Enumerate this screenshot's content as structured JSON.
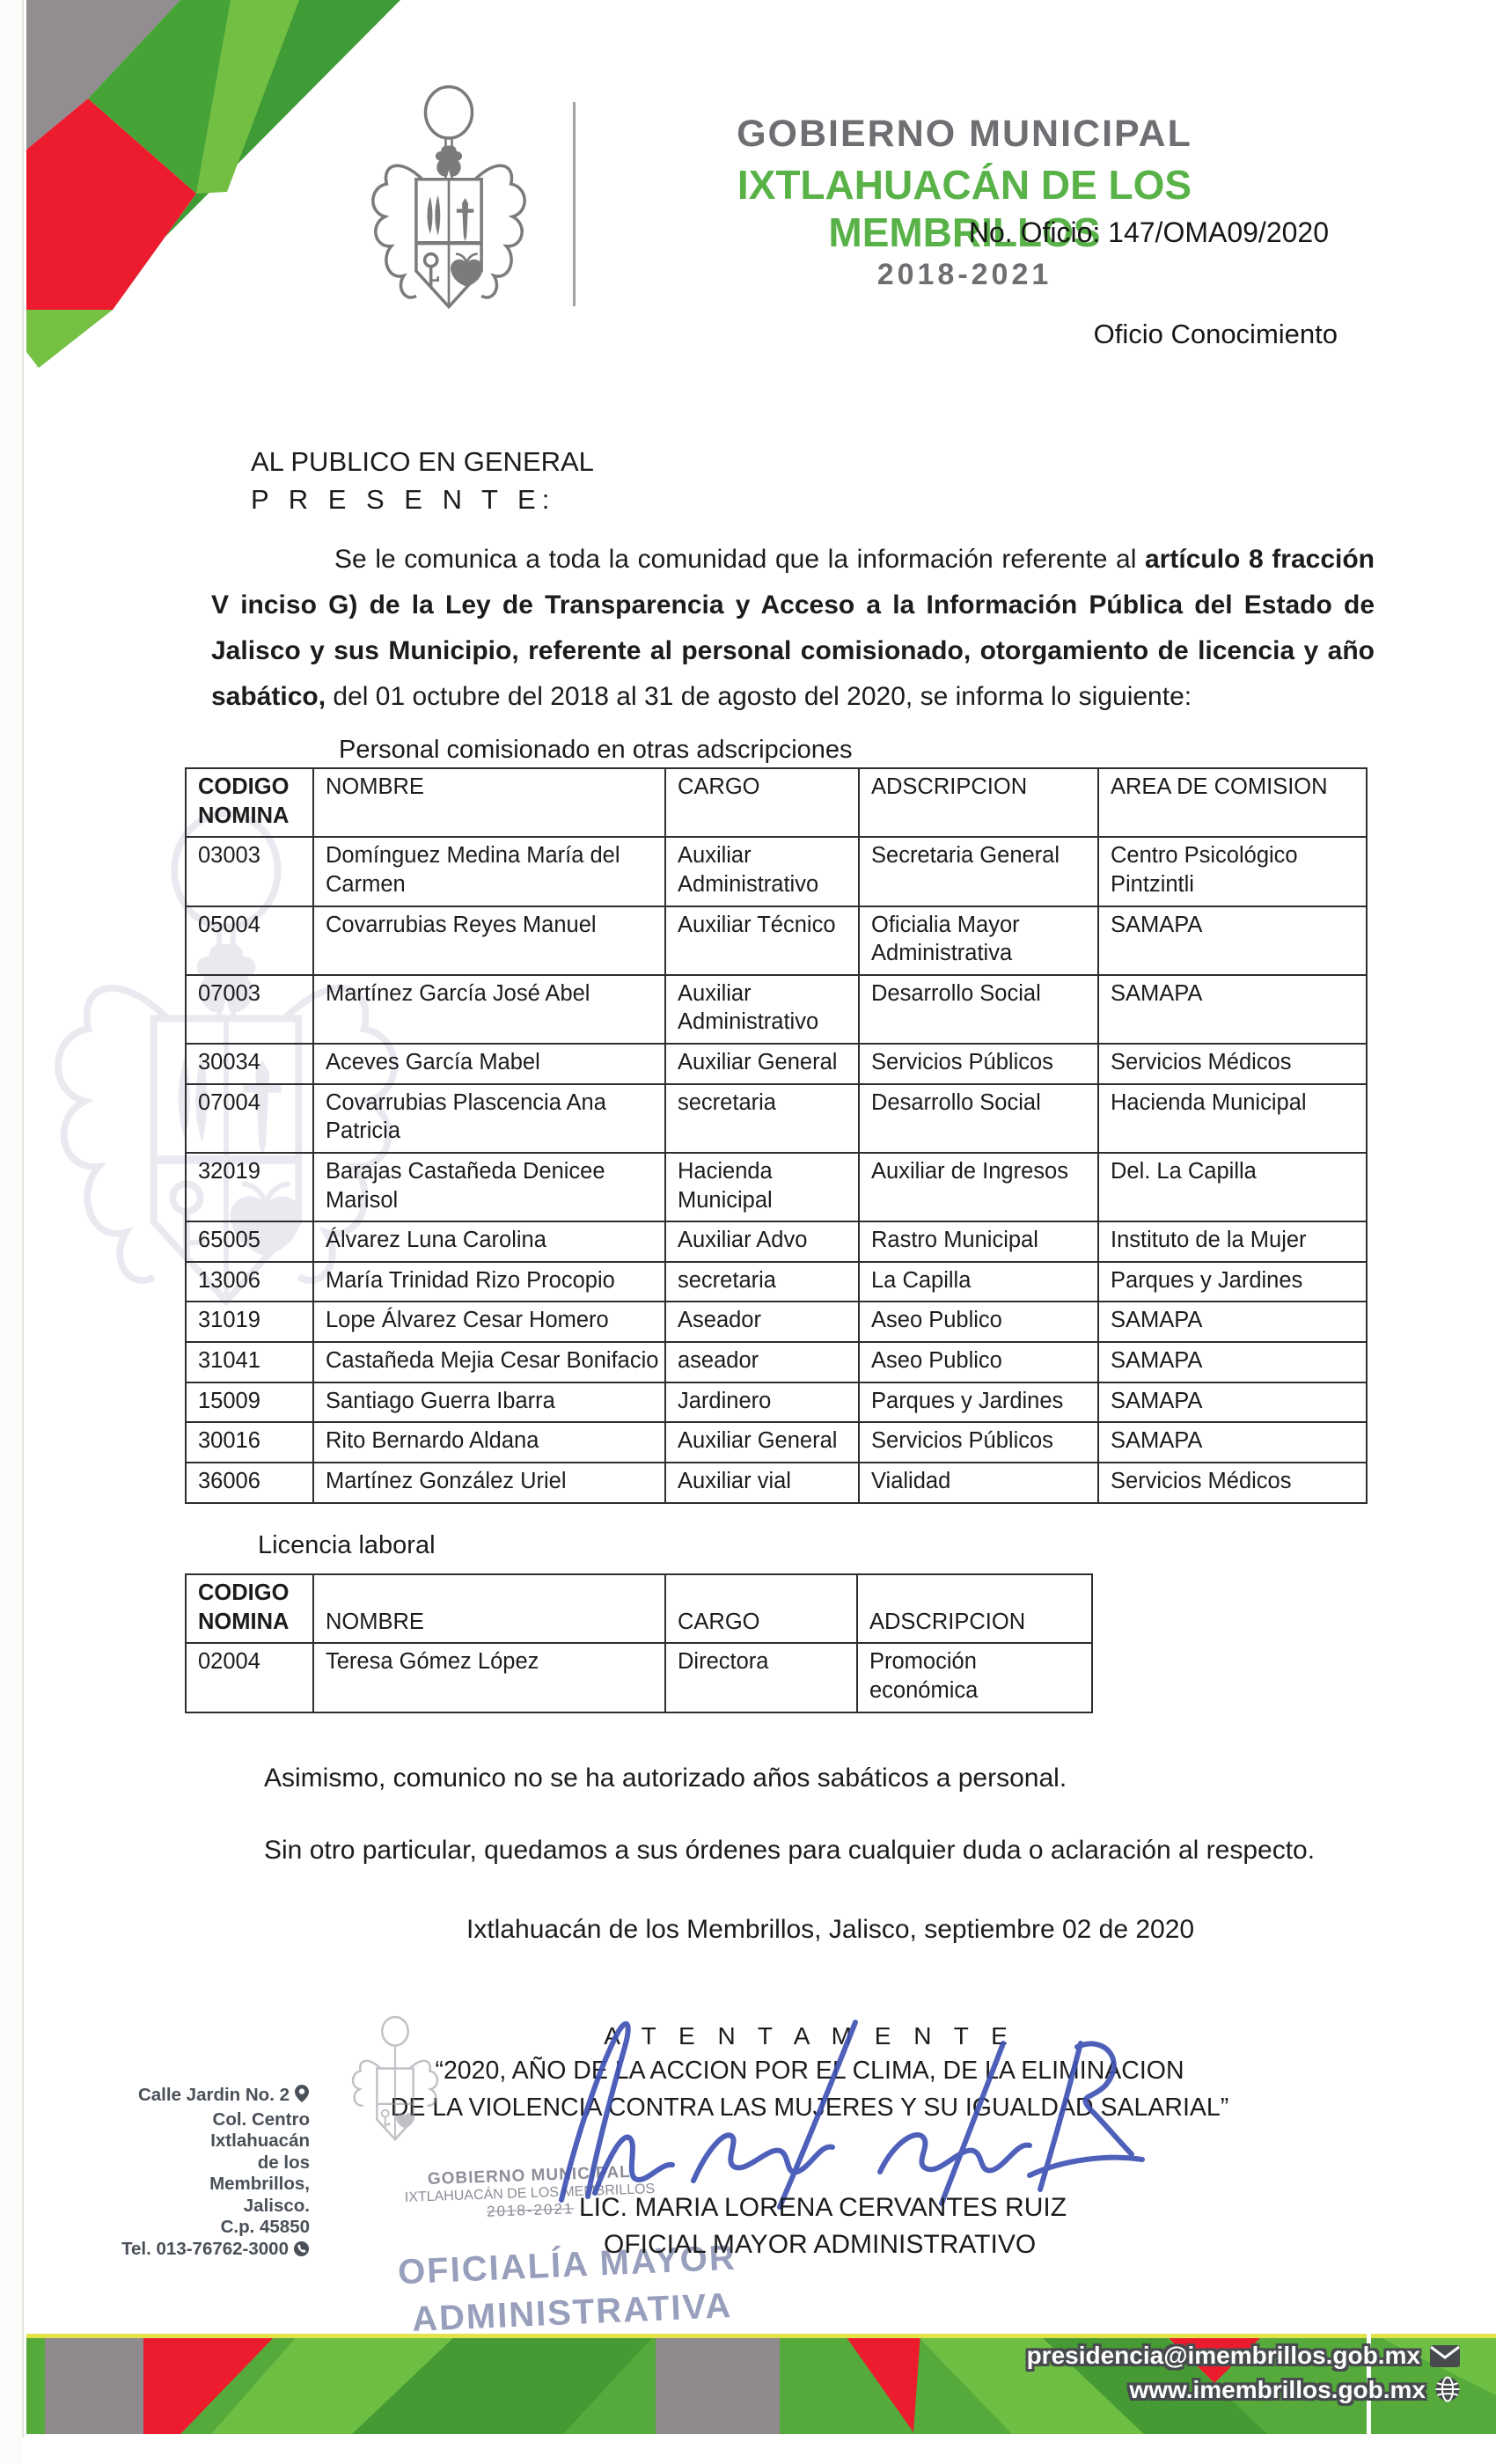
{
  "header": {
    "org_line1": "GOBIERNO MUNICIPAL",
    "org_line2": "IXTLAHUACÁN DE LOS MEMBRILLOS",
    "term": "2018-2021",
    "oficio_no": "No. Oficio: 147/OMA09/2020",
    "oficio_tipo": "Oficio Conocimiento"
  },
  "letter": {
    "recipient_line1": "AL PUBLICO EN GENERAL",
    "recipient_line2": "P R E S E N T E:",
    "intro_normal1": "Se le comunica a toda la comunidad que la información referente al ",
    "intro_bold": "artículo 8 fracción V inciso G) de la Ley de Transparencia y Acceso a la Información Pública del Estado de Jalisco y sus Municipio, referente al personal comisionado, otorgamiento de licencia y año sabático,",
    "intro_normal2": " del 01 octubre del 2018 al 31 de agosto del 2020, se informa lo siguiente:",
    "table1_caption": "Personal comisionado en otras adscripciones",
    "table2_caption": "Licencia laboral",
    "note1": "Asimismo, comunico no se ha autorizado años sabáticos a personal.",
    "note2": "Sin otro particular, quedamos a sus órdenes para cualquier duda o aclaración al respecto.",
    "dateline": "Ixtlahuacán de los Membrillos, Jalisco, septiembre 02 de 2020"
  },
  "table1": {
    "headers": [
      "CODIGO\nNOMINA",
      "NOMBRE",
      "CARGO",
      "ADSCRIPCION",
      "AREA DE COMISION"
    ],
    "rows": [
      [
        "03003",
        "Domínguez Medina María del Carmen",
        "Auxiliar Administrativo",
        "Secretaria General",
        "Centro Psicológico Pintzintli"
      ],
      [
        "05004",
        "Covarrubias Reyes Manuel",
        "Auxiliar Técnico",
        "Oficialia Mayor Administrativa",
        "SAMAPA"
      ],
      [
        "07003",
        "Martínez García José Abel",
        "Auxiliar Administrativo",
        "Desarrollo Social",
        "SAMAPA"
      ],
      [
        "30034",
        "Aceves García Mabel",
        "Auxiliar General",
        "Servicios Públicos",
        "Servicios Médicos"
      ],
      [
        "07004",
        "Covarrubias Plascencia Ana Patricia",
        "secretaria",
        "Desarrollo Social",
        "Hacienda Municipal"
      ],
      [
        "32019",
        "Barajas Castañeda Denicee Marisol",
        "Hacienda Municipal",
        "Auxiliar de Ingresos",
        "Del. La Capilla"
      ],
      [
        "65005",
        "Álvarez Luna Carolina",
        "Auxiliar Advo",
        "Rastro Municipal",
        "Instituto de la Mujer"
      ],
      [
        "13006",
        "María Trinidad Rizo Procopio",
        "secretaria",
        "La Capilla",
        "Parques y Jardines"
      ],
      [
        "31019",
        "Lope Álvarez Cesar Homero",
        "Aseador",
        "Aseo Publico",
        "SAMAPA"
      ],
      [
        "31041",
        "Castañeda Mejia Cesar Bonifacio",
        "aseador",
        "Aseo Publico",
        "SAMAPA"
      ],
      [
        "15009",
        "Santiago Guerra Ibarra",
        "Jardinero",
        "Parques y Jardines",
        "SAMAPA"
      ],
      [
        "30016",
        "Rito Bernardo Aldana",
        "Auxiliar General",
        "Servicios Públicos",
        "SAMAPA"
      ],
      [
        "36006",
        "Martínez González Uriel",
        "Auxiliar vial",
        "Vialidad",
        "Servicios Médicos"
      ]
    ]
  },
  "table2": {
    "headers": [
      "CODIGO\nNOMINA",
      "NOMBRE",
      "CARGO",
      "ADSCRIPCION"
    ],
    "rows": [
      [
        "02004",
        "Teresa Gómez López",
        "Directora",
        "Promoción económica"
      ]
    ]
  },
  "signature": {
    "salutation": "A T E N T A M E N T E",
    "motto_line1": "“2020, AÑO DE LA ACCION POR EL CLIMA, DE LA ELIMINACION",
    "motto_line2": "DE LA VIOLENCIA CONTRA LAS MUJERES Y SU IGUALDAD SALARIAL”",
    "name": "LIC. MARIA LORENA CERVANTES RUIZ",
    "title": "OFICIAL MAYOR ADMINISTRATIVO",
    "stamp_line1": "GOBIERNO MUNICIPAL",
    "stamp_line2": "IXTLAHUACÁN DE LOS MEMBRILLOS",
    "stamp_line3": "2018-2021",
    "stamp_big1": "OFICIALÍA MAYOR",
    "stamp_big2": "ADMINISTRATIVA"
  },
  "footer": {
    "address_lines": [
      "Calle Jardin No. 2",
      "Col. Centro",
      "Ixtlahuacán",
      "de los",
      "Membrillos,",
      "Jalisco.",
      "C.p. 45850",
      "Tel. 013-76762-3000"
    ],
    "email": "presidencia@imembrillos.gob.mx",
    "website": "www.imembrillos.gob.mx"
  },
  "icons": {
    "address_pin": "location-pin",
    "phone": "phone-receiver",
    "email": "envelope",
    "website": "globe"
  },
  "colors": {
    "brand_green": "#58b247",
    "accent_red": "#ec1c2e",
    "decor_gray": "#918d90",
    "header_gray": "#6e6f72",
    "signature_blue": "#4053b4",
    "stamp_blue": "#7f88ac"
  }
}
